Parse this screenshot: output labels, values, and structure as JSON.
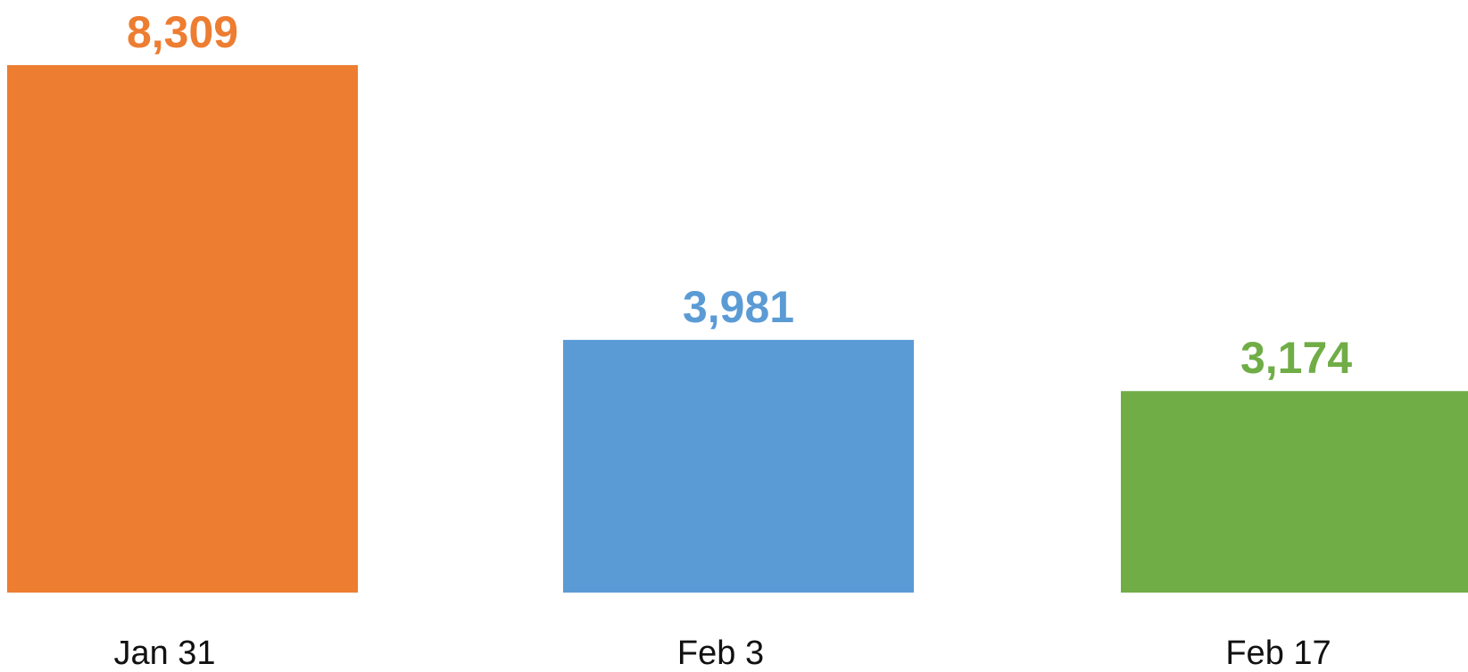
{
  "chart_data": {
    "type": "bar",
    "categories": [
      "Jan 31",
      "Feb 3",
      "Feb 17"
    ],
    "values": [
      8309,
      3981,
      3174
    ],
    "value_labels": [
      "8,309",
      "3,981",
      "3,174"
    ],
    "bar_colors": [
      "#ED7D31",
      "#5B9BD5",
      "#70AD47"
    ],
    "title": "",
    "xlabel": "",
    "ylabel": "",
    "ylim": [
      0,
      8309
    ],
    "grid": false,
    "legend": "none"
  }
}
